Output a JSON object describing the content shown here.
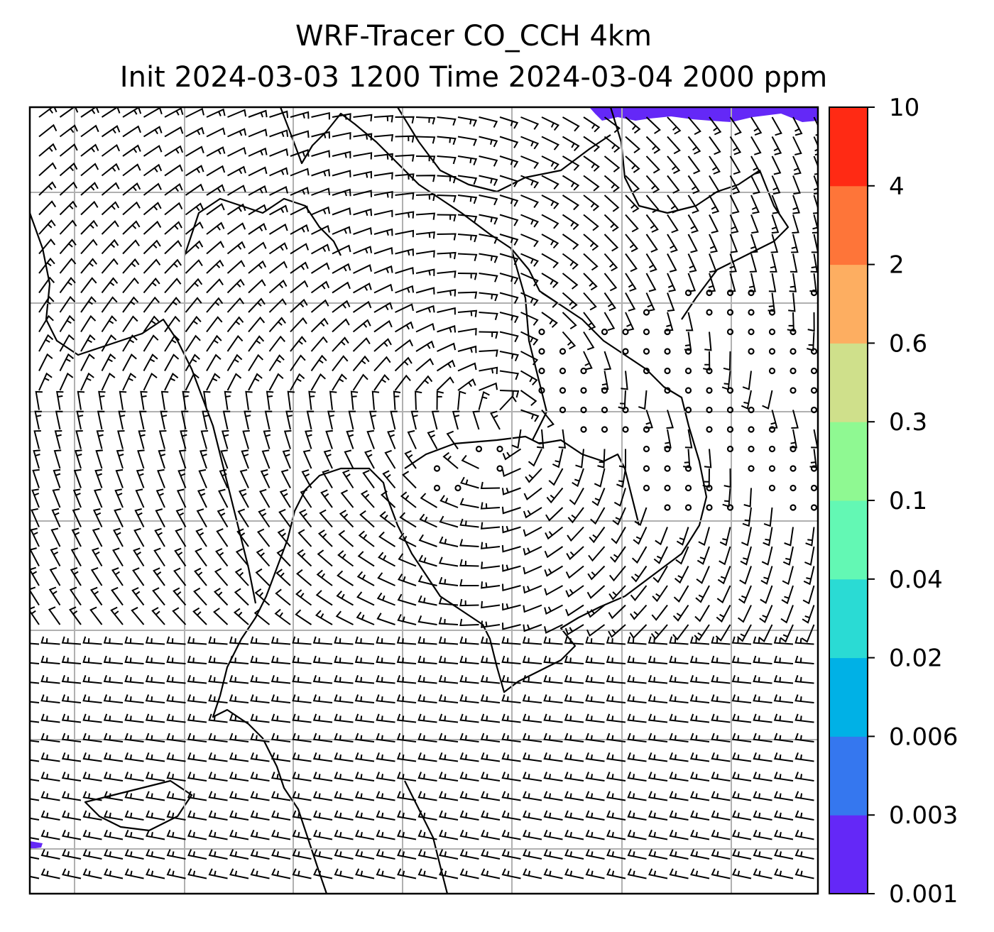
{
  "title": {
    "line1": "WRF-Tracer CO_CCH 4km",
    "line2": "Init 2024-03-03 1200 Time 2024-03-04 2000 ppm"
  },
  "colorbar": {
    "levels": [
      "0.001",
      "0.003",
      "0.006",
      "0.02",
      "0.04",
      "0.1",
      "0.3",
      "0.6",
      "2",
      "4",
      "10"
    ],
    "colors": [
      "#6428f7",
      "#3577ef",
      "#00b1e6",
      "#2adbd4",
      "#63f8b4",
      "#8ff992",
      "#cfe08b",
      "#fdae61",
      "#fe7539",
      "#ff2a14"
    ]
  },
  "map": {
    "background": "#ffffff",
    "gridline_color": "#b0b0b0",
    "coastline_color": "#000000",
    "tracer_color": "#6428f7",
    "barb_color": "#000000"
  }
}
